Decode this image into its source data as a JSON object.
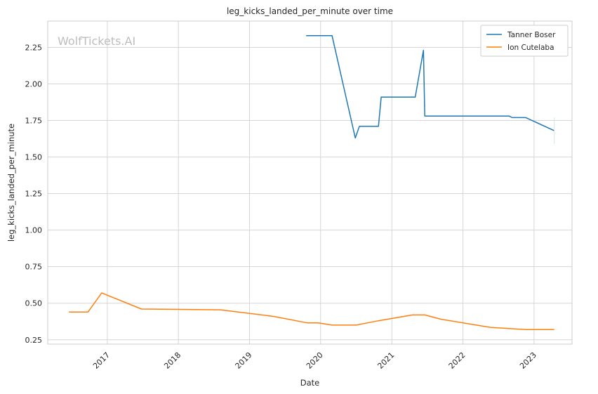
{
  "chart_data": {
    "type": "line",
    "title": "leg_kicks_landed_per_minute over time",
    "xlabel": "Date",
    "ylabel": "leg_kicks_landed_per_minute",
    "watermark": "WolfTickets.AI",
    "xlim": [
      "2016-03-01",
      "2023-07-15"
    ],
    "ylim": [
      0.22,
      2.43
    ],
    "yticks": [
      0.25,
      0.5,
      0.75,
      1.0,
      1.25,
      1.5,
      1.75,
      2.0,
      2.25
    ],
    "ytick_labels": [
      "0.25",
      "0.50",
      "0.75",
      "1.00",
      "1.25",
      "1.50",
      "1.75",
      "2.00",
      "2.25"
    ],
    "xticks": [
      "2017-01-01",
      "2018-01-01",
      "2019-01-01",
      "2020-01-01",
      "2021-01-01",
      "2022-01-01",
      "2023-01-01"
    ],
    "xtick_labels": [
      "2017",
      "2018",
      "2019",
      "2020",
      "2021",
      "2022",
      "2023"
    ],
    "grid": true,
    "legend_position": "top-right",
    "series": [
      {
        "name": "Tanner Boser",
        "color": "#1f77b4",
        "points": [
          [
            "2019-10-19",
            2.33
          ],
          [
            "2020-02-29",
            2.33
          ],
          [
            "2020-06-27",
            1.63
          ],
          [
            "2020-07-18",
            1.71
          ],
          [
            "2020-10-24",
            1.71
          ],
          [
            "2020-11-07",
            1.91
          ],
          [
            "2021-05-01",
            1.91
          ],
          [
            "2021-06-12",
            2.23
          ],
          [
            "2021-06-19",
            1.78
          ],
          [
            "2022-08-27",
            1.78
          ],
          [
            "2022-09-10",
            1.77
          ],
          [
            "2022-11-19",
            1.77
          ],
          [
            "2023-04-15",
            1.68
          ]
        ]
      },
      {
        "name": "Ion Cutelaba",
        "color": "#ff7f0e",
        "points": [
          [
            "2016-06-18",
            0.44
          ],
          [
            "2016-09-24",
            0.44
          ],
          [
            "2016-12-03",
            0.57
          ],
          [
            "2017-06-25",
            0.46
          ],
          [
            "2018-08-04",
            0.455
          ],
          [
            "2019-05-04",
            0.41
          ],
          [
            "2019-10-26",
            0.365
          ],
          [
            "2019-12-21",
            0.365
          ],
          [
            "2020-02-29",
            0.35
          ],
          [
            "2020-07-01",
            0.35
          ],
          [
            "2020-10-24",
            0.38
          ],
          [
            "2021-04-17",
            0.42
          ],
          [
            "2021-06-19",
            0.42
          ],
          [
            "2021-09-11",
            0.39
          ],
          [
            "2022-05-21",
            0.335
          ],
          [
            "2022-11-19",
            0.32
          ],
          [
            "2023-04-15",
            0.32
          ]
        ]
      }
    ]
  }
}
